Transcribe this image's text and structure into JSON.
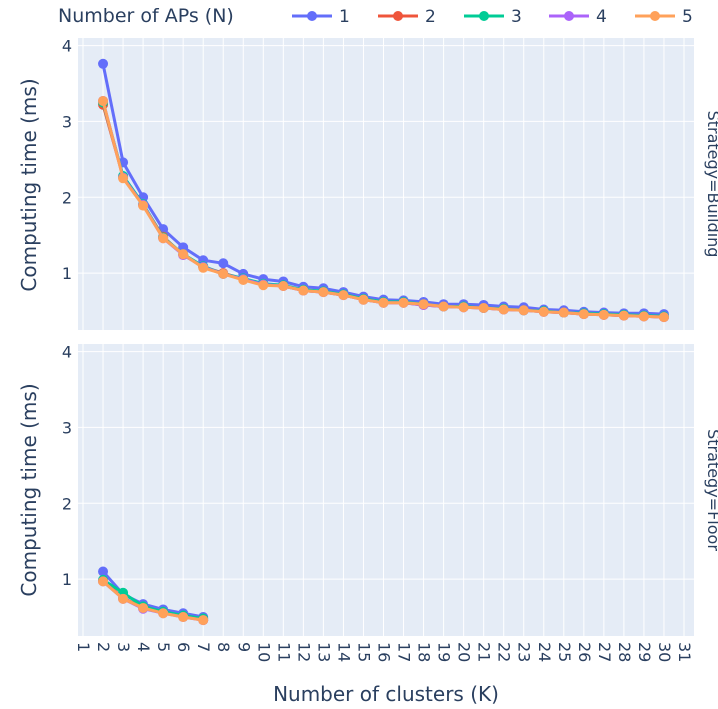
{
  "chart_data": {
    "type": "line",
    "legend_title": "Number of APs (N)",
    "legend_position": "top",
    "xlabel": "Number of clusters (K)",
    "ylabel": "Computing time (ms)",
    "x_ticks": [
      1,
      2,
      3,
      4,
      5,
      6,
      7,
      8,
      9,
      10,
      11,
      12,
      13,
      14,
      15,
      16,
      17,
      18,
      19,
      20,
      21,
      22,
      23,
      24,
      25,
      26,
      27,
      28,
      29,
      30,
      31
    ],
    "y_ticks": [
      1,
      2,
      3,
      4
    ],
    "xlim": [
      0.75,
      31.5
    ],
    "ylim": [
      0.25,
      4.1
    ],
    "grid": true,
    "colors": {
      "1": "#636efa",
      "2": "#ef553b",
      "3": "#00cc96",
      "4": "#ab63fa",
      "5": "#ffa15a"
    },
    "panels": [
      {
        "facet_label": "Strategy=Building",
        "x": [
          2,
          3,
          4,
          5,
          6,
          7,
          8,
          9,
          10,
          11,
          12,
          13,
          14,
          15,
          16,
          17,
          18,
          19,
          20,
          21,
          22,
          23,
          24,
          25,
          26,
          27,
          28,
          29,
          30
        ],
        "series": [
          {
            "name": "1",
            "values": [
              3.76,
              2.46,
              2.0,
              1.58,
              1.34,
              1.17,
              1.13,
              0.99,
              0.92,
              0.89,
              0.82,
              0.8,
              0.75,
              0.69,
              0.65,
              0.64,
              0.62,
              0.59,
              0.59,
              0.58,
              0.56,
              0.55,
              0.52,
              0.51,
              0.49,
              0.48,
              0.47,
              0.47,
              0.46
            ]
          },
          {
            "name": "2",
            "values": [
              3.22,
              2.27,
              1.9,
              1.48,
              1.24,
              1.08,
              1.0,
              0.92,
              0.85,
              0.83,
              0.77,
              0.75,
              0.71,
              0.65,
              0.61,
              0.61,
              0.58,
              0.56,
              0.55,
              0.54,
              0.52,
              0.51,
              0.49,
              0.48,
              0.46,
              0.45,
              0.44,
              0.43,
              0.42
            ]
          },
          {
            "name": "3",
            "values": [
              3.25,
              2.28,
              1.91,
              1.47,
              1.25,
              1.09,
              0.99,
              0.93,
              0.86,
              0.84,
              0.78,
              0.76,
              0.72,
              0.66,
              0.62,
              0.62,
              0.59,
              0.56,
              0.56,
              0.54,
              0.53,
              0.51,
              0.5,
              0.48,
              0.47,
              0.46,
              0.45,
              0.44,
              0.43
            ]
          },
          {
            "name": "4",
            "values": [
              3.27,
              2.26,
              1.9,
              1.46,
              1.24,
              1.08,
              0.99,
              0.92,
              0.85,
              0.83,
              0.77,
              0.75,
              0.71,
              0.65,
              0.61,
              0.61,
              0.58,
              0.56,
              0.55,
              0.54,
              0.52,
              0.51,
              0.49,
              0.48,
              0.46,
              0.45,
              0.44,
              0.43,
              0.42
            ]
          },
          {
            "name": "5",
            "values": [
              3.27,
              2.25,
              1.89,
              1.46,
              1.25,
              1.07,
              0.99,
              0.91,
              0.84,
              0.83,
              0.77,
              0.75,
              0.71,
              0.65,
              0.61,
              0.61,
              0.59,
              0.56,
              0.55,
              0.54,
              0.52,
              0.51,
              0.49,
              0.48,
              0.46,
              0.45,
              0.44,
              0.43,
              0.42
            ]
          }
        ]
      },
      {
        "facet_label": "Strategy=Floor",
        "x": [
          2,
          3,
          4,
          5,
          6,
          7
        ],
        "series": [
          {
            "name": "1",
            "values": [
              1.1,
              0.8,
              0.67,
              0.6,
              0.55,
              0.5
            ]
          },
          {
            "name": "2",
            "values": [
              0.98,
              0.75,
              0.62,
              0.56,
              0.51,
              0.46
            ]
          },
          {
            "name": "3",
            "values": [
              0.99,
              0.82,
              0.64,
              0.57,
              0.52,
              0.48
            ]
          },
          {
            "name": "4",
            "values": [
              0.97,
              0.74,
              0.61,
              0.55,
              0.5,
              0.46
            ]
          },
          {
            "name": "5",
            "values": [
              0.97,
              0.74,
              0.62,
              0.55,
              0.5,
              0.46
            ]
          }
        ]
      }
    ]
  }
}
